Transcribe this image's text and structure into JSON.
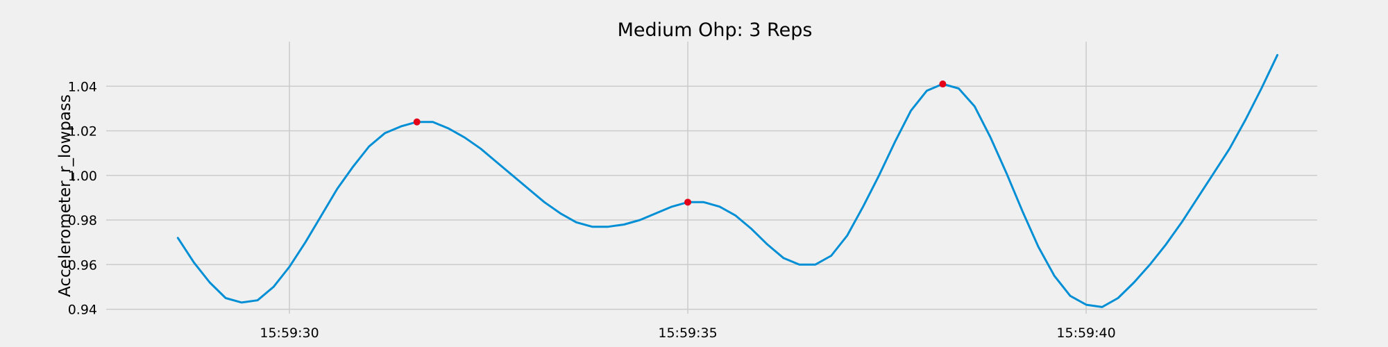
{
  "chart_data": {
    "type": "line",
    "title": "Medium Ohp: 3 Reps",
    "xlabel": "",
    "ylabel": "Accelerometer_r_lowpass",
    "x_tick_labels": [
      "15:59:30",
      "15:59:35",
      "15:59:40"
    ],
    "y_tick_labels": [
      "0.94",
      "0.96",
      "0.98",
      "1.00",
      "1.02",
      "1.04"
    ],
    "y_ticks": [
      0.94,
      0.96,
      0.98,
      1.0,
      1.02,
      1.04
    ],
    "x_ticks_seconds": [
      30,
      35,
      40
    ],
    "xlim_seconds": [
      27.7,
      42.9
    ],
    "ylim": [
      0.938,
      1.06
    ],
    "grid": true,
    "series": [
      {
        "color": "#008fd5",
        "x_seconds": [
          28.6,
          28.8,
          29.0,
          29.2,
          29.4,
          29.6,
          29.8,
          30.0,
          30.2,
          30.4,
          30.6,
          30.8,
          31.0,
          31.2,
          31.4,
          31.6,
          31.8,
          32.0,
          32.2,
          32.4,
          32.6,
          32.8,
          33.0,
          33.2,
          33.4,
          33.6,
          33.8,
          34.0,
          34.2,
          34.4,
          34.6,
          34.8,
          35.0,
          35.2,
          35.4,
          35.6,
          35.8,
          36.0,
          36.2,
          36.4,
          36.6,
          36.8,
          37.0,
          37.2,
          37.4,
          37.6,
          37.8,
          38.0,
          38.2,
          38.4,
          38.6,
          38.8,
          39.0,
          39.2,
          39.4,
          39.6,
          39.8,
          40.0,
          40.2,
          40.4,
          40.6,
          40.8,
          41.0,
          41.2,
          41.4,
          41.6,
          41.8,
          42.0,
          42.2,
          42.4
        ],
        "values": [
          0.972,
          0.961,
          0.952,
          0.945,
          0.943,
          0.944,
          0.95,
          0.959,
          0.97,
          0.982,
          0.994,
          1.004,
          1.013,
          1.019,
          1.022,
          1.024,
          1.024,
          1.021,
          1.017,
          1.012,
          1.006,
          1.0,
          0.994,
          0.988,
          0.983,
          0.979,
          0.977,
          0.977,
          0.978,
          0.98,
          0.983,
          0.986,
          0.988,
          0.988,
          0.986,
          0.982,
          0.976,
          0.969,
          0.963,
          0.96,
          0.96,
          0.964,
          0.973,
          0.986,
          1.0,
          1.015,
          1.029,
          1.038,
          1.041,
          1.039,
          1.031,
          1.017,
          1.001,
          0.984,
          0.968,
          0.955,
          0.946,
          0.942,
          0.941,
          0.945,
          0.952,
          0.96,
          0.969,
          0.979,
          0.99,
          1.001,
          1.012,
          1.025,
          1.039,
          1.054
        ]
      },
      {
        "type": "scatter",
        "color": "#e5001a",
        "x_seconds": [
          31.6,
          35.0,
          38.2
        ],
        "values": [
          1.024,
          0.988,
          1.041
        ]
      }
    ]
  }
}
